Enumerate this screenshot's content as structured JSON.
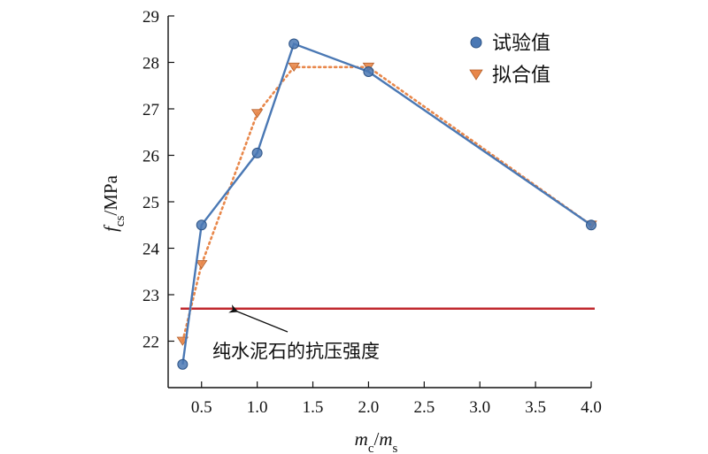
{
  "chart_data": {
    "type": "line",
    "title": "",
    "xlabel": {
      "var": "m",
      "sub": "c",
      "sep": "/",
      "var2": "m",
      "sub2": "s"
    },
    "ylabel": {
      "var": "f",
      "sub": "cs",
      "unit": "/MPa"
    },
    "xlim": [
      0.2,
      4.0
    ],
    "ylim": [
      21.0,
      29.0
    ],
    "x_ticks": [
      0.5,
      1.0,
      1.5,
      2.0,
      2.5,
      3.0,
      3.5,
      4.0
    ],
    "x_tick_labels": [
      "0.5",
      "1.0",
      "1.5",
      "2.0",
      "2.5",
      "3.0",
      "3.5",
      "4.0"
    ],
    "y_ticks": [
      22,
      23,
      24,
      25,
      26,
      27,
      28,
      29
    ],
    "y_tick_labels": [
      "22",
      "23",
      "24",
      "25",
      "26",
      "27",
      "28",
      "29"
    ],
    "grid": false,
    "legend_position": "top-right",
    "series": [
      {
        "name": "试验值",
        "marker": "circle",
        "line": "solid",
        "color": "#4a78b4",
        "x": [
          0.33,
          0.5,
          1.0,
          1.33,
          2.0,
          4.0
        ],
        "y": [
          21.5,
          24.5,
          26.05,
          28.4,
          27.8,
          24.5
        ]
      },
      {
        "name": "拟合值",
        "marker": "triangle-down",
        "line": "dotted",
        "color": "#e8874a",
        "x": [
          0.33,
          0.5,
          1.0,
          1.33,
          2.0,
          4.0
        ],
        "y": [
          22.0,
          23.65,
          26.9,
          27.9,
          27.9,
          24.5
        ]
      }
    ],
    "reference_line": {
      "y": 22.7,
      "color": "#c0282e",
      "label": "纯水泥石的抗压强度",
      "arrow_at_x": 0.8
    }
  }
}
